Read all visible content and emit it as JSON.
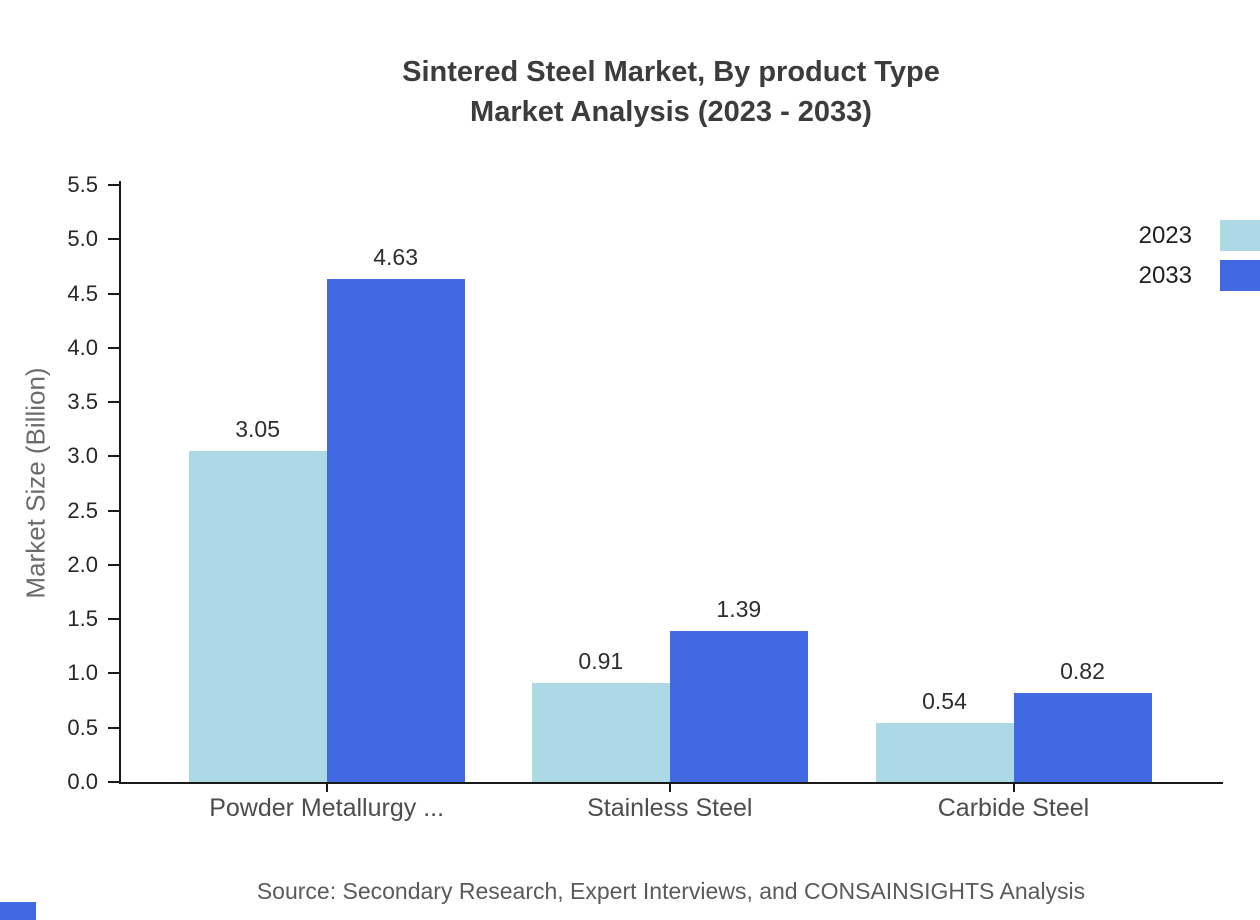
{
  "title": {
    "line1": "Sintered Steel Market, By product Type",
    "line2": "Market Analysis (2023 - 2033)"
  },
  "source": "Source: Secondary Research, Expert Interviews, and CONSAINSIGHTS Analysis",
  "corner_mark_color": "#4169e1",
  "chart_data": {
    "type": "bar",
    "title": "Sintered Steel Market, By product Type Market Analysis (2023 - 2033)",
    "categories": [
      "Powder Metallurgy ...",
      "Stainless Steel",
      "Carbide Steel"
    ],
    "series": [
      {
        "name": "2023",
        "color": "#add8e6",
        "values": [
          3.05,
          0.91,
          0.54
        ]
      },
      {
        "name": "2033",
        "color": "#4169e1",
        "values": [
          4.63,
          1.39,
          0.82
        ]
      }
    ],
    "xlabel": "",
    "ylabel": "Market Size (Billion)",
    "ylim": [
      0,
      5.5
    ],
    "ytick_step": 0.5,
    "grid": false,
    "legend_position": "top-right",
    "value_label_decimals": 2
  }
}
